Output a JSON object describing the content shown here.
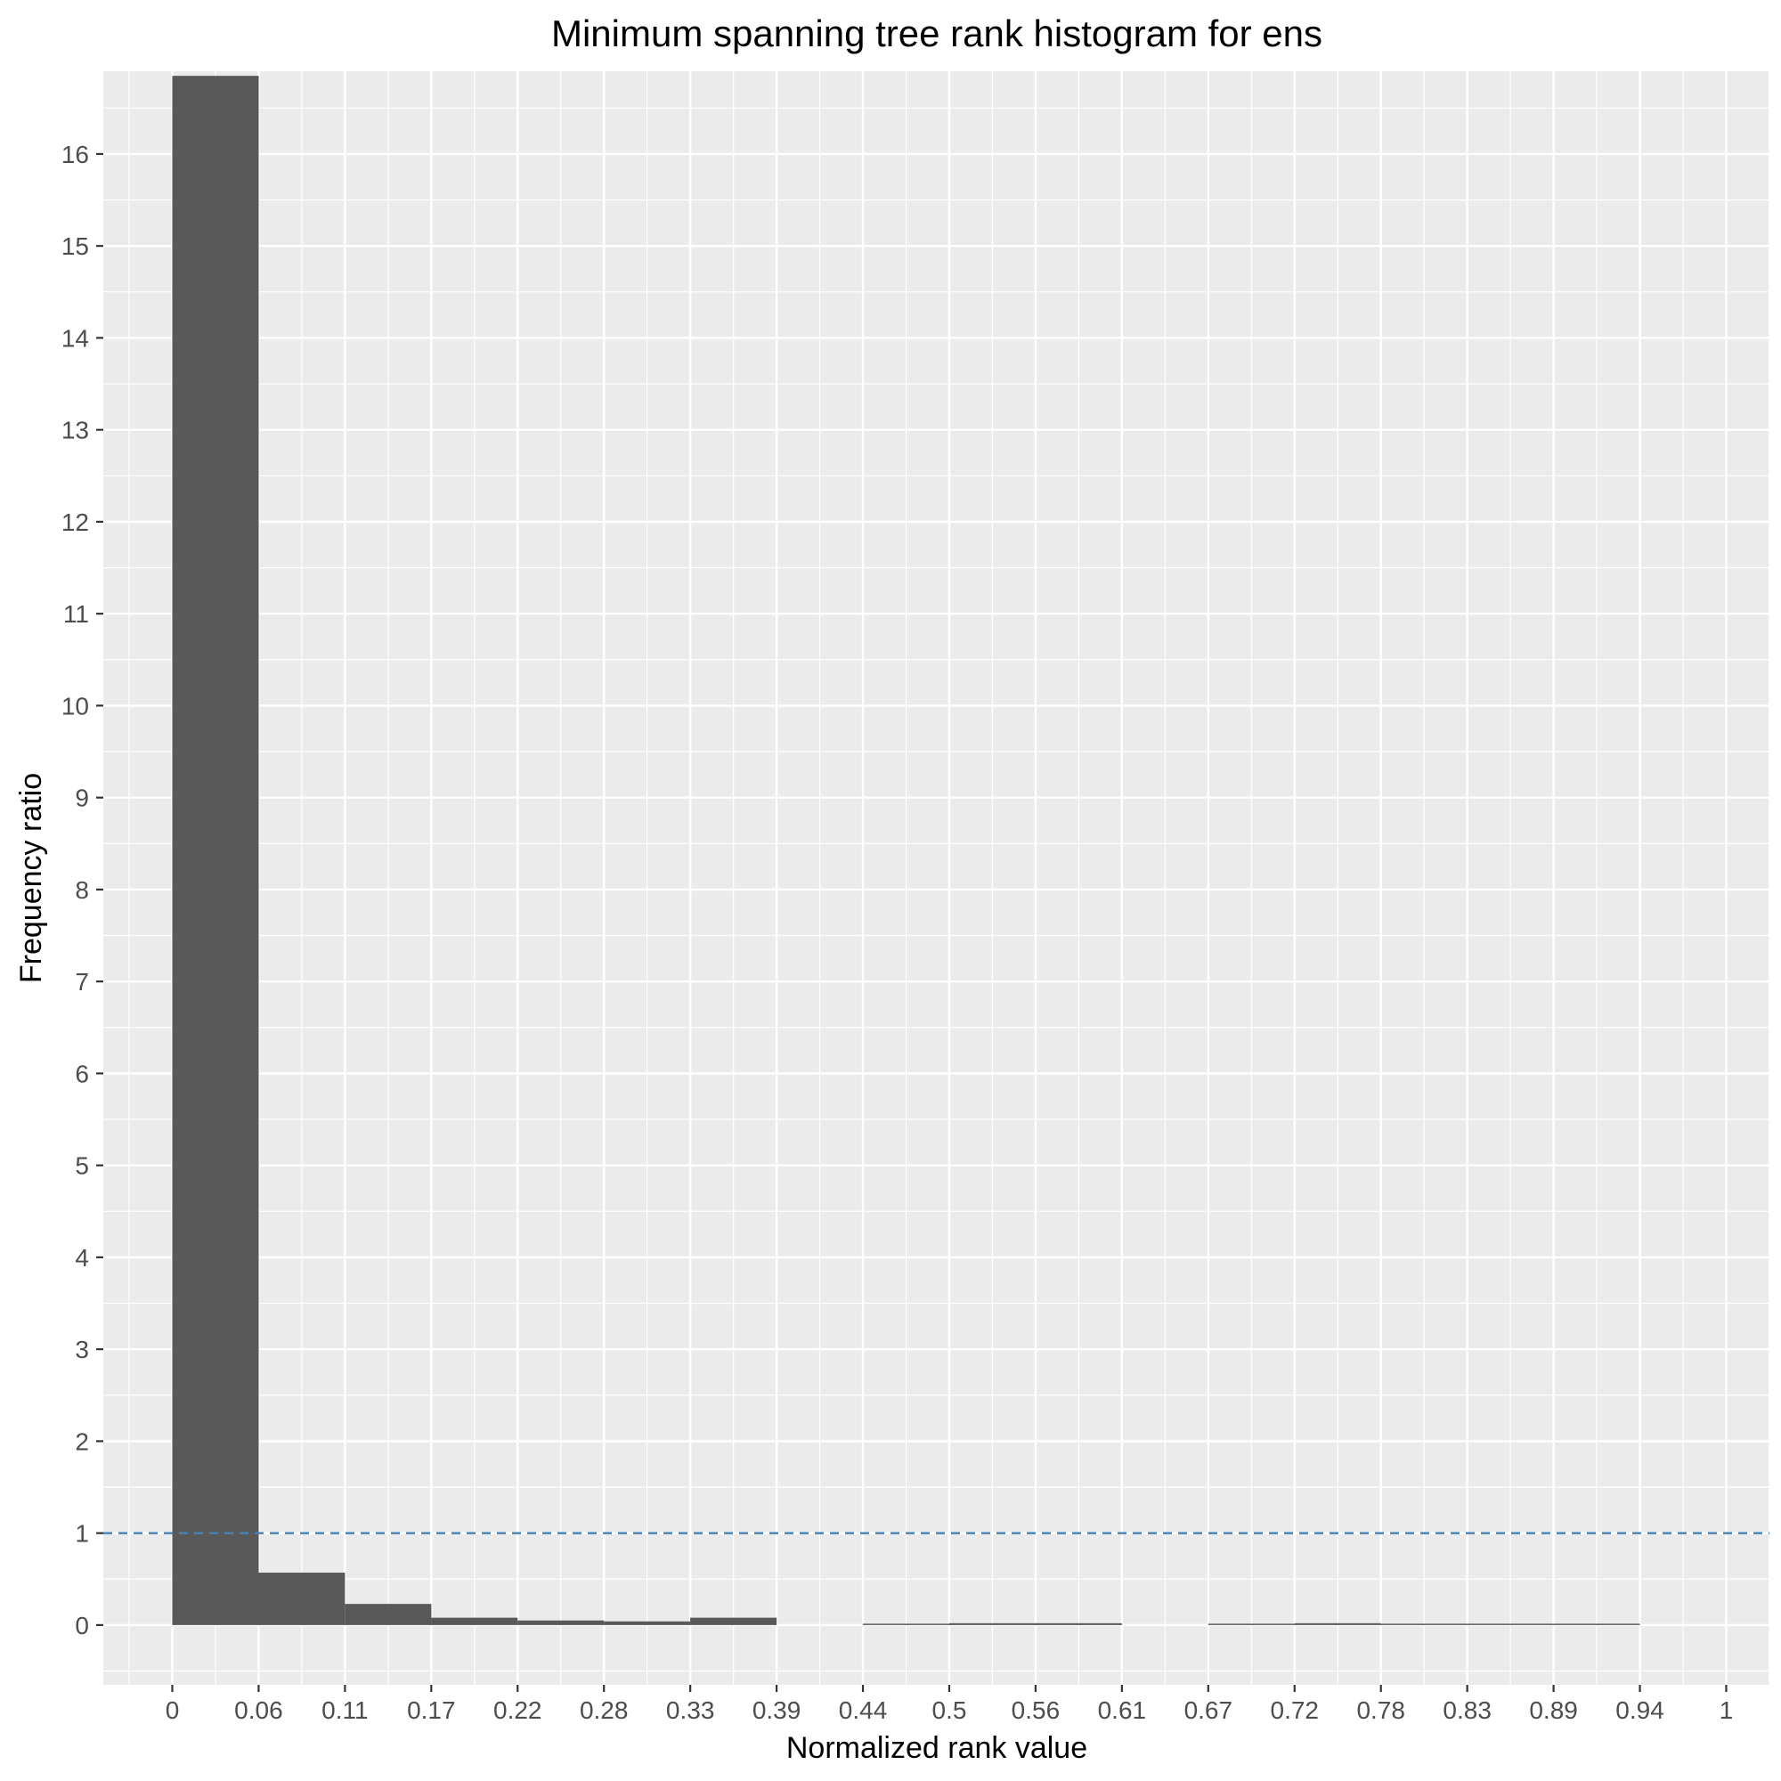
{
  "chart_data": {
    "type": "bar",
    "title": "Minimum spanning tree rank histogram for ens",
    "xlabel": "Normalized rank value",
    "ylabel": "Frequency ratio",
    "x_ticks": [
      "0",
      "0.06",
      "0.11",
      "0.17",
      "0.22",
      "0.28",
      "0.33",
      "0.39",
      "0.44",
      "0.5",
      "0.56",
      "0.61",
      "0.67",
      "0.72",
      "0.78",
      "0.83",
      "0.89",
      "0.94",
      "1"
    ],
    "y_ticks": [
      0,
      1,
      2,
      3,
      4,
      5,
      6,
      7,
      8,
      9,
      10,
      11,
      12,
      13,
      14,
      15,
      16
    ],
    "xlim": [
      -0.0444,
      1.0278
    ],
    "ylim": [
      -0.65,
      16.9
    ],
    "bins": [
      {
        "start": 0,
        "end": 0.0556,
        "value": 16.85
      },
      {
        "start": 0.0556,
        "end": 0.1111,
        "value": 0.57
      },
      {
        "start": 0.1111,
        "end": 0.1667,
        "value": 0.23
      },
      {
        "start": 0.1667,
        "end": 0.2222,
        "value": 0.08
      },
      {
        "start": 0.2222,
        "end": 0.2778,
        "value": 0.05
      },
      {
        "start": 0.2778,
        "end": 0.3333,
        "value": 0.04
      },
      {
        "start": 0.3333,
        "end": 0.3889,
        "value": 0.08
      },
      {
        "start": 0.3889,
        "end": 0.4444,
        "value": 0
      },
      {
        "start": 0.4444,
        "end": 0.5,
        "value": 0.01
      },
      {
        "start": 0.5,
        "end": 0.5556,
        "value": 0.02
      },
      {
        "start": 0.5556,
        "end": 0.6111,
        "value": 0.02
      },
      {
        "start": 0.6111,
        "end": 0.6667,
        "value": 0
      },
      {
        "start": 0.6667,
        "end": 0.7222,
        "value": 0.01
      },
      {
        "start": 0.7222,
        "end": 0.7778,
        "value": 0.02
      },
      {
        "start": 0.7778,
        "end": 0.8333,
        "value": 0.01
      },
      {
        "start": 0.8333,
        "end": 0.8889,
        "value": 0.01
      },
      {
        "start": 0.8889,
        "end": 0.9444,
        "value": 0.01
      },
      {
        "start": 0.9444,
        "end": 1,
        "value": 0
      }
    ],
    "reference_line": {
      "y": 1,
      "style": "dashed",
      "color": "#4682b4"
    },
    "grid": true,
    "colors": {
      "bar": "#595959",
      "panel": "#ebebeb",
      "grid": "#ffffff"
    }
  }
}
